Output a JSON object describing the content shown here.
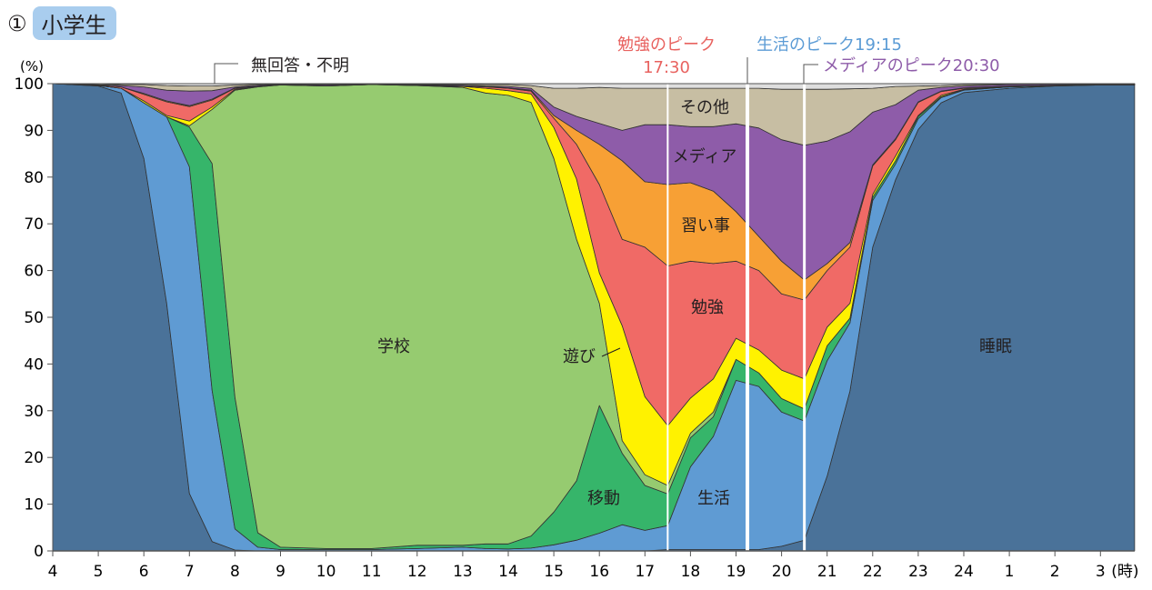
{
  "header": {
    "number": "①",
    "title": "小学生"
  },
  "chart_data": {
    "type": "area",
    "stacked": true,
    "ylabel": "(%)",
    "xlabel": "(時)",
    "ylim": [
      0,
      100
    ],
    "yticks": [
      "0",
      "10",
      "20",
      "30",
      "40",
      "50",
      "60",
      "70",
      "80",
      "90",
      "100"
    ],
    "xticks": [
      "4",
      "5",
      "6",
      "7",
      "8",
      "9",
      "10",
      "11",
      "12",
      "13",
      "14",
      "15",
      "16",
      "17",
      "18",
      "19",
      "20",
      "21",
      "22",
      "23",
      "24",
      "1",
      "2",
      "3"
    ],
    "grid": false,
    "x": [
      "4:00",
      "5:00",
      "5:30",
      "6:00",
      "6:30",
      "7:00",
      "7:30",
      "8:00",
      "8:30",
      "9:00",
      "10:00",
      "11:00",
      "12:00",
      "13:00",
      "13:30",
      "14:00",
      "14:30",
      "15:00",
      "15:30",
      "16:00",
      "16:30",
      "17:00",
      "17:30",
      "18:00",
      "18:30",
      "19:00",
      "19:30",
      "20:00",
      "20:30",
      "21:00",
      "21:30",
      "22:00",
      "22:30",
      "23:00",
      "23:30",
      "24:00",
      "1:00",
      "2:00",
      "3:00",
      "3:45"
    ],
    "series": [
      {
        "name": "睡眠",
        "color": "#4a7299",
        "values": [
          100,
          99.5,
          98,
          84,
          53,
          12.3,
          2,
          0.2,
          0,
          0,
          0,
          0,
          0,
          0,
          0,
          0,
          0,
          0,
          0,
          0,
          0,
          0,
          0.3,
          0.3,
          0.3,
          0.3,
          0.3,
          1,
          2.3,
          16,
          34.2,
          65,
          79.4,
          90.2,
          95.9,
          98.1,
          99,
          99.5,
          99.7,
          99.7
        ]
      },
      {
        "name": "生活",
        "color": "#5f9bd3",
        "values": [
          0,
          0.1,
          1,
          11.9,
          39.9,
          69.9,
          32.3,
          4.5,
          0.8,
          0.3,
          0.3,
          0.3,
          0.5,
          0.8,
          0.5,
          0.4,
          0.6,
          1.3,
          2.3,
          3.8,
          5.6,
          4.4,
          5.1,
          17.7,
          24.2,
          36.2,
          34.9,
          28.7,
          25.5,
          24.7,
          14.6,
          10,
          3.4,
          2.3,
          1.1,
          0.5,
          0.3,
          0.1,
          0.1,
          0.1
        ]
      },
      {
        "name": "移動",
        "color": "#36b56a",
        "values": [
          0,
          0,
          0,
          0,
          0,
          8.5,
          48.6,
          28.2,
          3.1,
          0.5,
          0.2,
          0.2,
          0.7,
          0.4,
          1,
          1.1,
          2.6,
          7,
          12.7,
          27.3,
          15.3,
          9.6,
          6.8,
          6.2,
          4.2,
          4.5,
          2.9,
          2.9,
          2.6,
          3.2,
          1,
          0.7,
          0.7,
          0.5,
          0.2,
          0.1,
          0,
          0,
          0,
          0
        ]
      },
      {
        "name": "学校",
        "color": "#96cb70",
        "values": [
          0,
          0,
          0,
          0,
          0,
          0.3,
          11.6,
          65.7,
          95.4,
          98.9,
          99,
          99.3,
          98.4,
          98,
          96.5,
          96,
          92.8,
          75.7,
          51.7,
          21.9,
          2.7,
          2.3,
          1.8,
          1,
          1,
          0,
          0,
          0,
          0,
          0,
          0,
          0,
          0,
          0,
          0,
          0,
          0,
          0,
          0,
          0
        ]
      },
      {
        "name": "遊び",
        "color": "#fff200",
        "values": [
          0,
          0,
          0,
          0.4,
          0.3,
          1,
          0.5,
          0.2,
          0.1,
          0,
          0,
          0,
          0,
          0.2,
          1,
          1,
          1.8,
          6.6,
          12.9,
          6.5,
          24.6,
          16.7,
          12.8,
          7.5,
          7.1,
          4.5,
          4.9,
          6.1,
          6.4,
          4,
          3.2,
          0.6,
          1,
          0.2,
          0.3,
          0.1,
          0.1,
          0,
          0,
          0
        ]
      },
      {
        "name": "勉強",
        "color": "#f06a66",
        "values": [
          0,
          0.1,
          0.3,
          1.4,
          2.9,
          3.1,
          1.5,
          0.2,
          0.1,
          0.1,
          0.1,
          0,
          0.1,
          0.1,
          0.3,
          0.5,
          0.6,
          2,
          7.4,
          18.9,
          18.5,
          32,
          34.2,
          29.3,
          24.7,
          16.5,
          17,
          16.3,
          16.9,
          12.1,
          12,
          6.1,
          3.5,
          2.8,
          0.8,
          0.2,
          0.1,
          0.1,
          0,
          0
        ]
      },
      {
        "name": "習い事",
        "color": "#f7a035",
        "values": [
          0,
          0,
          0,
          0.2,
          0.2,
          0.2,
          0.2,
          0.1,
          0,
          0,
          0,
          0,
          0,
          0,
          0.1,
          0.1,
          0.2,
          0.6,
          3,
          8.6,
          16.8,
          14,
          17.4,
          16.8,
          15.5,
          10.6,
          7.3,
          7,
          4.3,
          1.5,
          1,
          0.2,
          0.2,
          0.1,
          0.1,
          0.1,
          0,
          0,
          0,
          0
        ]
      },
      {
        "name": "メディア",
        "color": "#8e5ca9",
        "values": [
          0,
          0.1,
          0.3,
          1.4,
          2.3,
          3.1,
          1.8,
          0.2,
          0.2,
          0.1,
          0.2,
          0.1,
          0.1,
          0.2,
          0.1,
          0.3,
          0.4,
          1.8,
          3,
          4.5,
          6.5,
          12.2,
          12.8,
          12,
          13.8,
          18.8,
          23.2,
          26,
          28.8,
          26.2,
          23.7,
          11.3,
          7.3,
          2.5,
          0.8,
          0.4,
          0.3,
          0.2,
          0.1,
          0.1
        ]
      },
      {
        "name": "その他",
        "color": "#c7bea3",
        "values": [
          0,
          0.2,
          0.2,
          0.5,
          1,
          1.1,
          1,
          0.4,
          0.2,
          0.1,
          0.1,
          0.1,
          0.1,
          0.2,
          0.3,
          0.4,
          0.6,
          4,
          6,
          7.7,
          9,
          7.8,
          7.8,
          8.2,
          8.2,
          7.6,
          8.5,
          10.8,
          12,
          11.1,
          9.2,
          5.1,
          3.9,
          0.9,
          0.4,
          0.3,
          0.1,
          0.1,
          0.1,
          0.1
        ]
      },
      {
        "name": "無回答・不明",
        "color": "#dedede",
        "values": [
          0,
          0,
          0.2,
          0.2,
          0.4,
          0.5,
          0.5,
          0.3,
          0.1,
          0,
          0.1,
          0,
          0.1,
          0.1,
          0.2,
          0.2,
          0.4,
          1,
          1,
          0.8,
          1,
          1,
          1,
          1,
          1,
          1,
          1,
          1.2,
          1.2,
          1.2,
          1.1,
          1,
          0.6,
          0.5,
          0.4,
          0.2,
          0.1,
          0,
          0,
          0
        ]
      }
    ],
    "annotations": [
      {
        "text": [
          "勉強のピーク",
          "17:30"
        ],
        "time": "17:30",
        "color": "#e8625f"
      },
      {
        "text": [
          "生活のピーク19:15"
        ],
        "time": "19:15",
        "color": "#5b9bd5"
      },
      {
        "text": [
          "メディアのピーク20:30"
        ],
        "time": "20:30",
        "color": "#8e5ca9"
      }
    ]
  }
}
